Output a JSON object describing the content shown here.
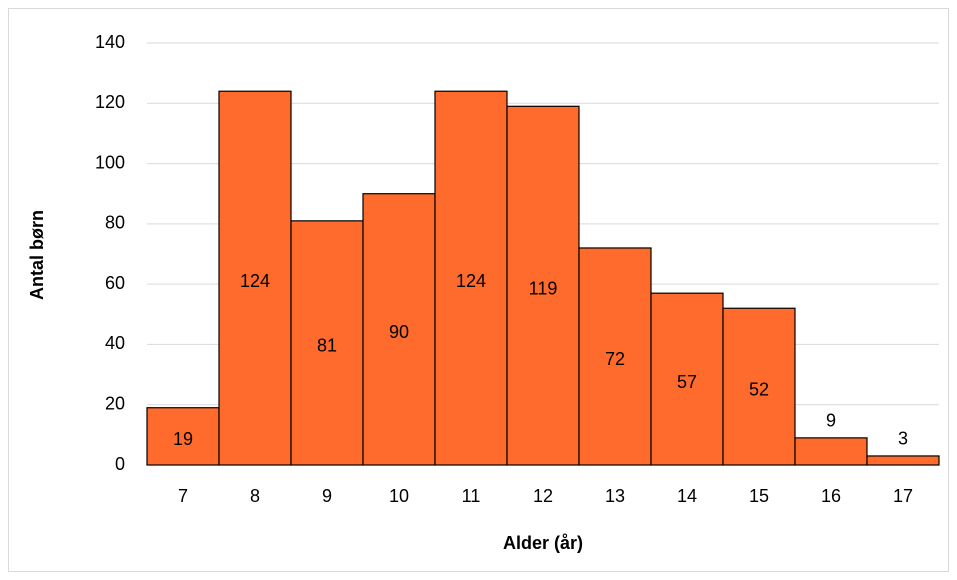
{
  "chart_data": {
    "type": "bar",
    "x_label": "Alder (år)",
    "y_label": "Antal børn",
    "categories": [
      "7",
      "8",
      "9",
      "10",
      "11",
      "12",
      "13",
      "14",
      "15",
      "16",
      "17"
    ],
    "values": [
      19,
      124,
      81,
      90,
      124,
      119,
      72,
      57,
      52,
      9,
      3
    ],
    "color": "#ff6b2c",
    "ylim": [
      0,
      140
    ],
    "yticks": [
      0,
      20,
      40,
      60,
      80,
      100,
      120,
      140
    ],
    "grid": true
  }
}
